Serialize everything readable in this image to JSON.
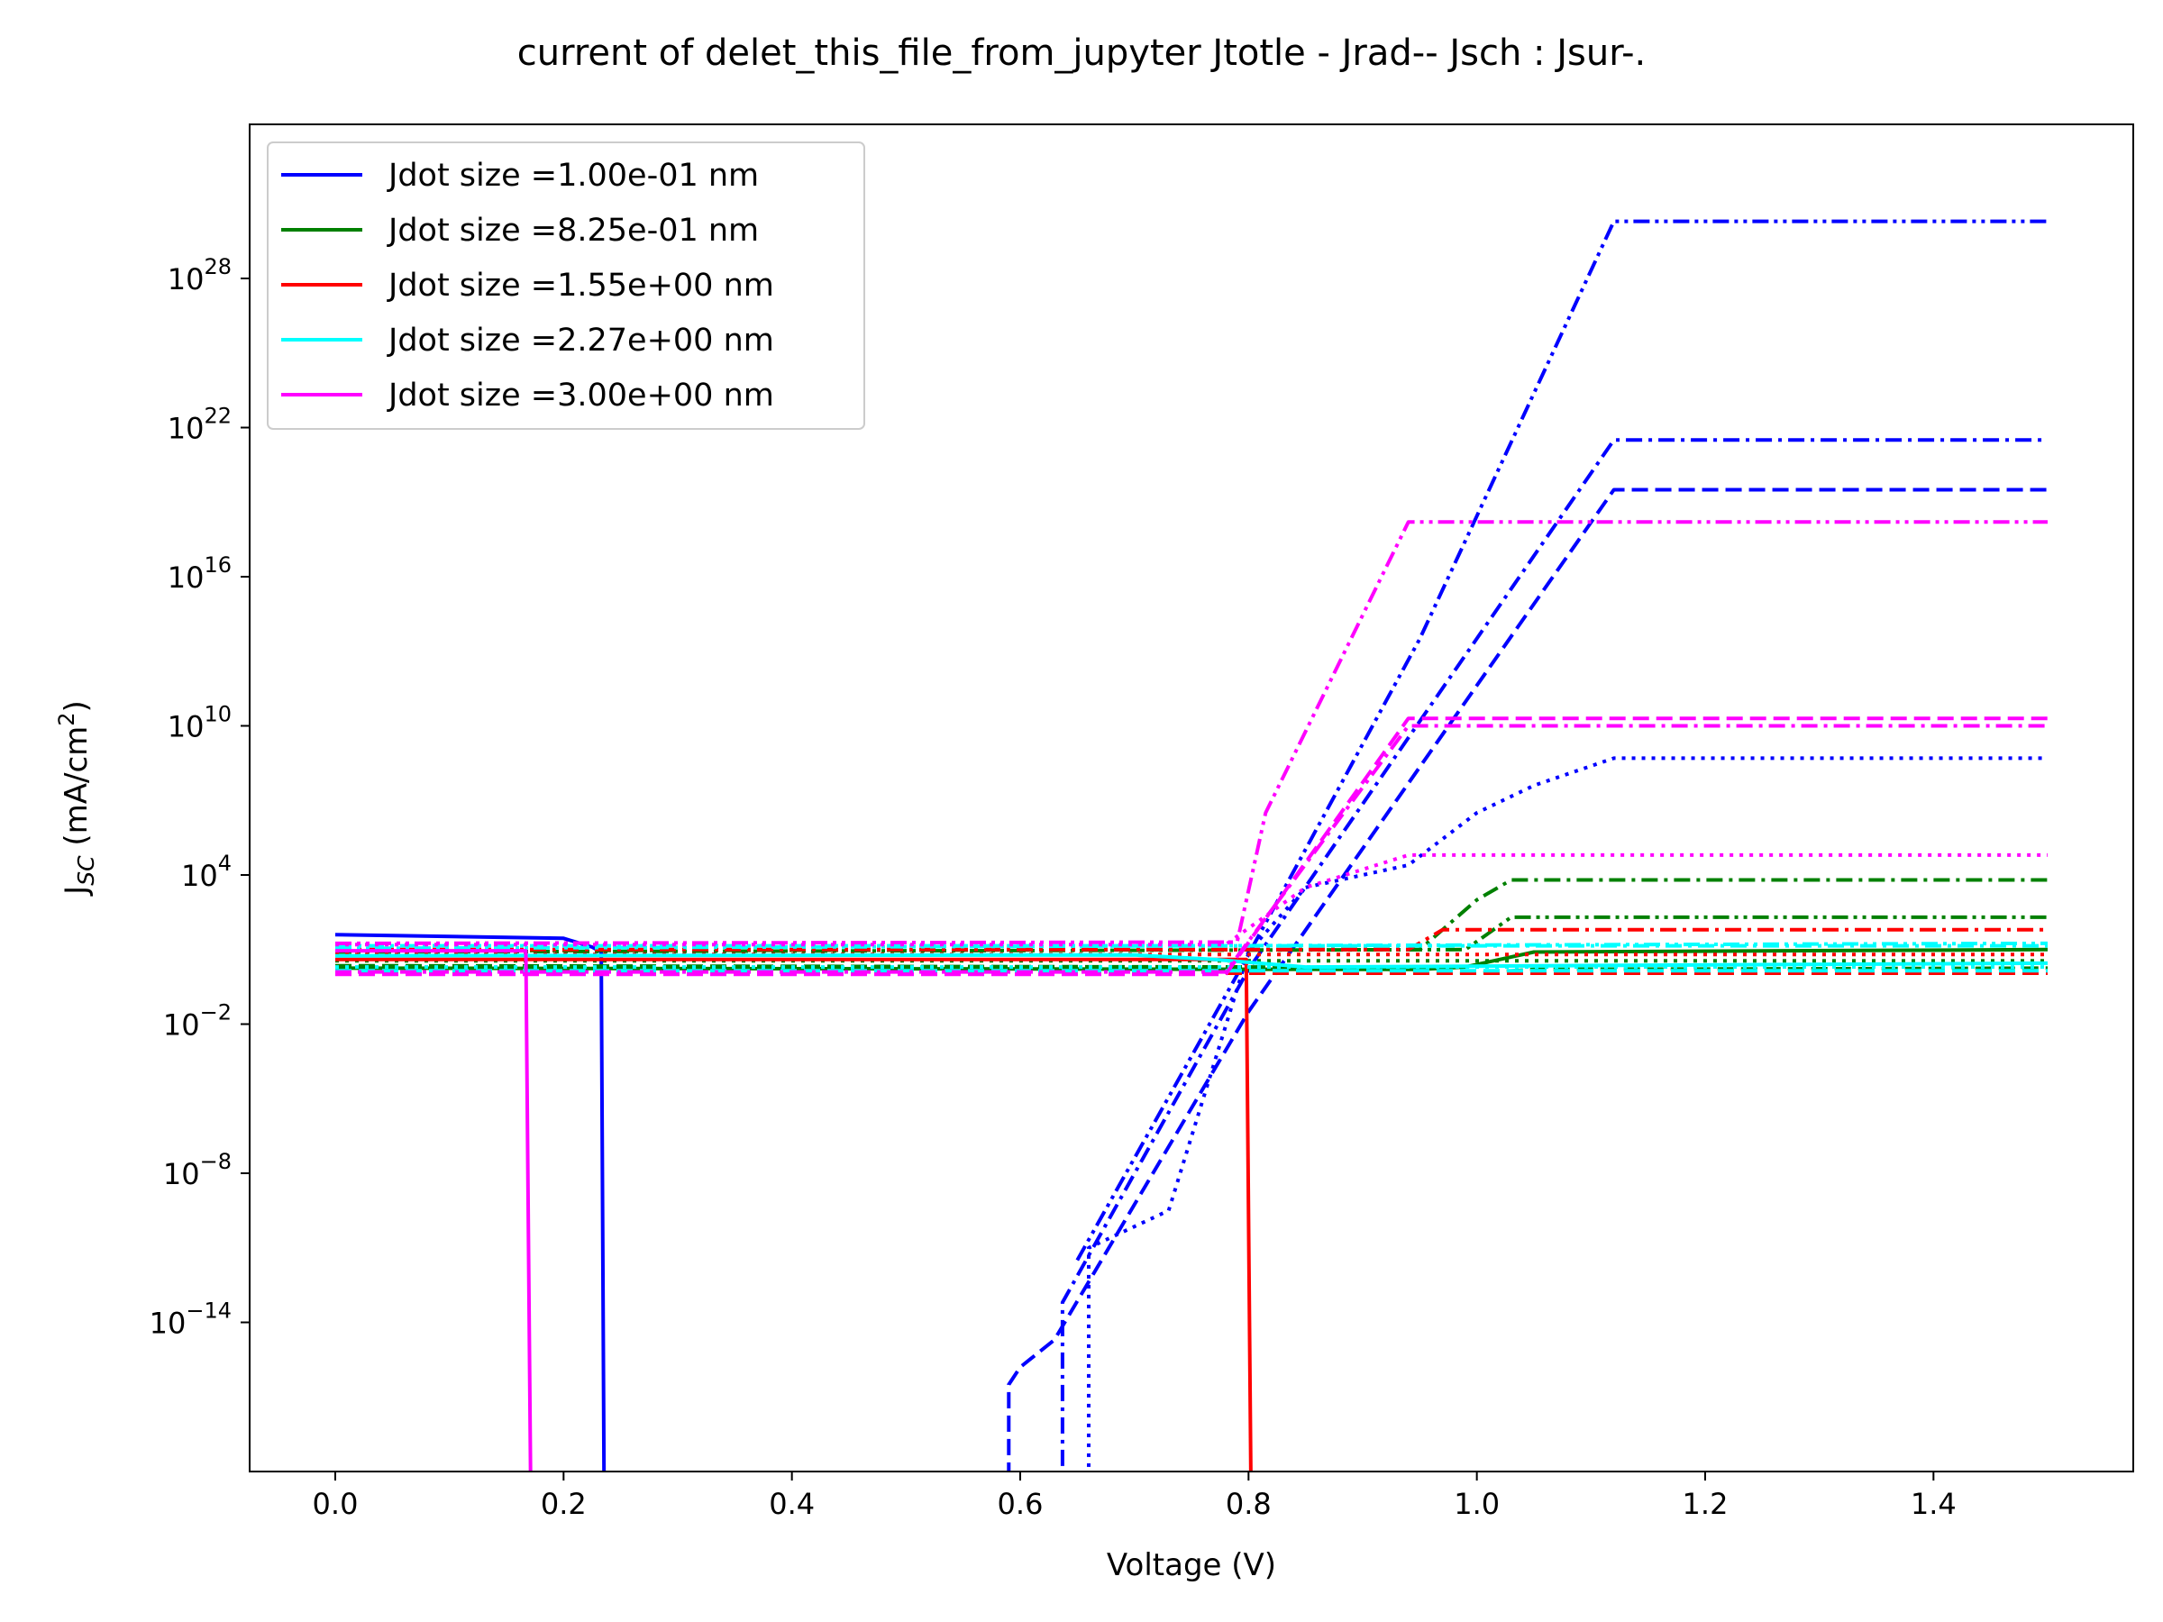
{
  "chart_data": {
    "type": "line",
    "title": "current of delet_this_file_from_jupyter Jtotle - Jrad-- Jsch : Jsur-.",
    "xlabel": "Voltage (V)",
    "ylabel": "J",
    "ylabel_sub": "SC",
    "ylabel_unit": " (mA/cm",
    "ylabel_unit_sup": "2",
    "ylabel_close": ")",
    "x_scale": "linear",
    "y_scale": "log",
    "xlim": [
      -0.075,
      1.575
    ],
    "ylim_exponent": [
      -20,
      34.2
    ],
    "x_ticks": [
      {
        "value": 0.0,
        "label": "0.0"
      },
      {
        "value": 0.2,
        "label": "0.2"
      },
      {
        "value": 0.4,
        "label": "0.4"
      },
      {
        "value": 0.6,
        "label": "0.6"
      },
      {
        "value": 0.8,
        "label": "0.8"
      },
      {
        "value": 1.0,
        "label": "1.0"
      },
      {
        "value": 1.2,
        "label": "1.2"
      },
      {
        "value": 1.4,
        "label": "1.4"
      }
    ],
    "y_ticks": [
      {
        "exp": -14,
        "base": "10",
        "sup": "−14"
      },
      {
        "exp": -8,
        "base": "10",
        "sup": "−8"
      },
      {
        "exp": -2,
        "base": "10",
        "sup": "−2"
      },
      {
        "exp": 4,
        "base": "10",
        "sup": "4"
      },
      {
        "exp": 10,
        "base": "10",
        "sup": "10"
      },
      {
        "exp": 16,
        "base": "10",
        "sup": "16"
      },
      {
        "exp": 22,
        "base": "10",
        "sup": "22"
      },
      {
        "exp": 28,
        "base": "10",
        "sup": "28"
      }
    ],
    "legend_position": "top-left",
    "legend": [
      {
        "label": "Jdot size =1.00e-01 nm",
        "color": "#0000ff"
      },
      {
        "label": "Jdot size =8.25e-01 nm",
        "color": "#008000"
      },
      {
        "label": "Jdot size =1.55e+00 nm",
        "color": "#ff0000"
      },
      {
        "label": "Jdot size =2.27e+00 nm",
        "color": "#00ffff"
      },
      {
        "label": "Jdot size =3.00e+00 nm",
        "color": "#ff00ff"
      }
    ],
    "series": [
      {
        "color": "#0000ff",
        "style": "solid",
        "points": [
          [
            0,
            1.6
          ],
          [
            0.2,
            1.45
          ],
          [
            0.225,
            1.1
          ],
          [
            0.233,
            0.9
          ],
          [
            0.236,
            -25
          ]
        ]
      },
      {
        "color": "#0000ff",
        "style": "dashed",
        "points": [
          [
            0.59,
            -25
          ],
          [
            0.59,
            -16.5
          ],
          [
            0.6,
            -15.8
          ],
          [
            0.63,
            -14.7
          ],
          [
            0.8,
            -1.5
          ],
          [
            1.12,
            19.5
          ],
          [
            1.5,
            19.5
          ]
        ]
      },
      {
        "color": "#0000ff",
        "style": "dotted",
        "points": [
          [
            0.66,
            -25
          ],
          [
            0.66,
            -11
          ],
          [
            0.73,
            -9.5
          ],
          [
            0.8,
            0.9
          ],
          [
            0.85,
            3.5
          ],
          [
            0.94,
            4.4
          ],
          [
            1.0,
            6.5
          ],
          [
            1.05,
            7.6
          ],
          [
            1.12,
            8.7
          ],
          [
            1.5,
            8.7
          ]
        ]
      },
      {
        "color": "#0000ff",
        "style": "dashdot",
        "points": [
          [
            0.637,
            -25
          ],
          [
            0.637,
            -13.2
          ],
          [
            0.8,
            0.2
          ],
          [
            1.12,
            21.5
          ],
          [
            1.5,
            21.5
          ]
        ]
      },
      {
        "color": "#0000ff",
        "style": "dashdotdot",
        "points": [
          [
            0.65,
            -11.5
          ],
          [
            0.8,
            0.8
          ],
          [
            0.95,
            13.5
          ],
          [
            1.12,
            30.3
          ],
          [
            1.5,
            30.3
          ]
        ]
      },
      {
        "color": "#008000",
        "style": "solid",
        "points": [
          [
            0,
            0.25
          ],
          [
            0.95,
            0.2
          ],
          [
            0.99,
            0.3
          ],
          [
            1.05,
            0.9
          ],
          [
            1.5,
            1.0
          ]
        ]
      },
      {
        "color": "#008000",
        "style": "dashed",
        "points": [
          [
            0,
            0.35
          ],
          [
            0.82,
            0.3
          ],
          [
            1.0,
            0.05
          ],
          [
            1.05,
            0.2
          ],
          [
            1.5,
            0.25
          ]
        ]
      },
      {
        "color": "#008000",
        "style": "dotted",
        "points": [
          [
            0,
            0.55
          ],
          [
            1.5,
            0.55
          ]
        ]
      },
      {
        "color": "#008000",
        "style": "dashdot",
        "points": [
          [
            0,
            0.95
          ],
          [
            0.95,
            1.0
          ],
          [
            1.0,
            3.0
          ],
          [
            1.03,
            3.8
          ],
          [
            1.5,
            3.8
          ]
        ]
      },
      {
        "color": "#008000",
        "style": "dashdotdot",
        "points": [
          [
            0,
            0.9
          ],
          [
            0.99,
            1.0
          ],
          [
            1.03,
            2.3
          ],
          [
            1.5,
            2.3
          ]
        ]
      },
      {
        "color": "#ff0000",
        "style": "solid",
        "points": [
          [
            0,
            0.6
          ],
          [
            0.798,
            0.6
          ],
          [
            0.803,
            -25
          ]
        ]
      },
      {
        "color": "#ff0000",
        "style": "dashed",
        "points": [
          [
            0,
            0.05
          ],
          [
            1.5,
            0.05
          ]
        ]
      },
      {
        "color": "#ff0000",
        "style": "dotted",
        "points": [
          [
            0,
            0.8
          ],
          [
            1.5,
            0.8
          ]
        ]
      },
      {
        "color": "#ff0000",
        "style": "dashdot",
        "points": [
          [
            0,
            1.0
          ],
          [
            0.94,
            1.0
          ],
          [
            0.97,
            1.8
          ],
          [
            1.5,
            1.8
          ]
        ]
      },
      {
        "color": "#00ffff",
        "style": "solid",
        "points": [
          [
            0,
            0.75
          ],
          [
            0.7,
            0.78
          ],
          [
            0.77,
            0.6
          ],
          [
            0.85,
            0.3
          ],
          [
            1.5,
            0.45
          ]
        ]
      },
      {
        "color": "#00ffff",
        "style": "dashed",
        "points": [
          [
            0,
            0.15
          ],
          [
            1.5,
            0.15
          ]
        ]
      },
      {
        "color": "#00ffff",
        "style": "dotted",
        "points": [
          [
            0,
            0.3
          ],
          [
            1.5,
            0.3
          ]
        ]
      },
      {
        "color": "#00ffff",
        "style": "dashdot",
        "points": [
          [
            0,
            1.15
          ],
          [
            1.5,
            1.15
          ]
        ]
      },
      {
        "color": "#00ffff",
        "style": "dashdotdot",
        "points": [
          [
            0,
            1.05
          ],
          [
            1.5,
            1.25
          ]
        ]
      },
      {
        "color": "#ff00ff",
        "style": "solid",
        "points": [
          [
            0,
            0.95
          ],
          [
            0.167,
            0.95
          ],
          [
            0.172,
            -25
          ]
        ]
      },
      {
        "color": "#ff00ff",
        "style": "dashed",
        "points": [
          [
            0,
            0.0
          ],
          [
            0.78,
            0.0
          ],
          [
            0.94,
            10.3
          ],
          [
            1.5,
            10.3
          ]
        ]
      },
      {
        "color": "#ff00ff",
        "style": "dotted",
        "points": [
          [
            0,
            1.2
          ],
          [
            0.78,
            1.2
          ],
          [
            0.85,
            3.5
          ],
          [
            0.94,
            4.8
          ],
          [
            1.5,
            4.8
          ]
        ]
      },
      {
        "color": "#ff00ff",
        "style": "dashdot",
        "points": [
          [
            0,
            0.1
          ],
          [
            0.78,
            0.1
          ],
          [
            0.94,
            10.0
          ],
          [
            1.5,
            10.0
          ]
        ]
      },
      {
        "color": "#ff00ff",
        "style": "dashdotdot",
        "points": [
          [
            0,
            1.25
          ],
          [
            0.79,
            1.3
          ],
          [
            0.815,
            6.5
          ],
          [
            0.94,
            18.2
          ],
          [
            1.5,
            18.2
          ]
        ]
      }
    ]
  }
}
